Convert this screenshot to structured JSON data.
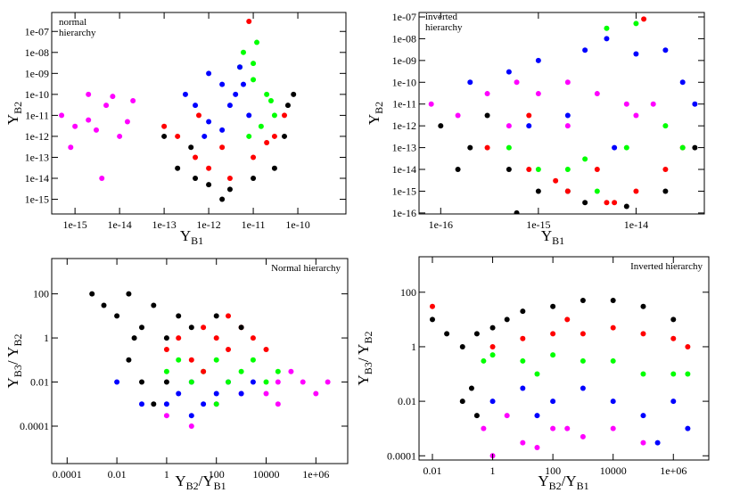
{
  "chart_data": [
    {
      "type": "scatter",
      "xscale": "log",
      "yscale": "log",
      "annotation": "normal hierarchy",
      "xlabel": [
        "Y",
        "B1"
      ],
      "ylabel": [
        "Y",
        "B2"
      ],
      "xlim": [
        3e-16,
        1.2e-09
      ],
      "ylim": [
        2e-16,
        8e-07
      ],
      "xticks": [
        {
          "value": 1e-15,
          "label": "1e-15"
        },
        {
          "value": 1e-14,
          "label": "1e-14"
        },
        {
          "value": 1e-13,
          "label": "1e-13"
        },
        {
          "value": 1e-12,
          "label": "1e-12"
        },
        {
          "value": 1e-11,
          "label": "1e-11"
        },
        {
          "value": 1e-10,
          "label": "1e-10"
        }
      ],
      "yticks": [
        {
          "value": 1e-15,
          "label": "1e-15"
        },
        {
          "value": 1e-14,
          "label": "1e-14"
        },
        {
          "value": 1e-13,
          "label": "1e-13"
        },
        {
          "value": 1e-12,
          "label": "1e-12"
        },
        {
          "value": 1e-11,
          "label": "1e-11"
        },
        {
          "value": 1e-10,
          "label": "1e-10"
        },
        {
          "value": 1e-09,
          "label": "1e-09"
        },
        {
          "value": 1e-08,
          "label": "1e-08"
        },
        {
          "value": 1e-07,
          "label": "1e-07"
        }
      ],
      "series": [
        {
          "color": "#ff00ff",
          "x": [
            5e-16,
            1e-15,
            2e-15,
            5e-15,
            1e-14,
            2e-14,
            8e-16,
            3e-15,
            7e-15,
            1.5e-14,
            4e-15,
            2e-15
          ],
          "values": [
            1e-11,
            3e-12,
            1e-10,
            3e-11,
            1e-12,
            5e-11,
            3e-13,
            2e-12,
            8e-11,
            5e-12,
            1e-14,
            6e-12
          ]
        },
        {
          "color": "#000000",
          "x": [
            1e-13,
            2e-13,
            5e-13,
            1e-12,
            3e-12,
            1e-11,
            3e-11,
            5e-11,
            8e-11,
            2e-12,
            4e-13,
            6e-11
          ],
          "values": [
            1e-12,
            3e-14,
            1e-14,
            5e-15,
            3e-15,
            1e-14,
            3e-14,
            1e-12,
            1e-10,
            1e-15,
            3e-13,
            3e-11
          ]
        },
        {
          "color": "#ff0000",
          "x": [
            2e-13,
            5e-13,
            1e-12,
            3e-12,
            1e-11,
            3e-11,
            5e-11,
            2e-12,
            6e-13,
            1e-13,
            2e-11,
            8e-12
          ],
          "values": [
            1e-12,
            1e-13,
            3e-14,
            1e-14,
            1e-13,
            1e-12,
            1e-11,
            3e-13,
            1e-11,
            3e-12,
            5e-13,
            3e-07
          ]
        },
        {
          "color": "#00ff00",
          "x": [
            6e-12,
            1e-11,
            2e-11,
            3e-11,
            8e-12,
            1.5e-11,
            1e-11,
            5e-12,
            2.5e-11,
            1.2e-11
          ],
          "values": [
            1e-08,
            3e-09,
            1e-10,
            1e-11,
            1e-12,
            3e-12,
            5e-10,
            2e-09,
            5e-11,
            3e-08
          ]
        },
        {
          "color": "#0000ff",
          "x": [
            5e-13,
            1e-12,
            2e-12,
            5e-12,
            8e-12,
            3e-13,
            1e-12,
            3e-12,
            6e-12,
            2e-12,
            8e-13,
            4e-12
          ],
          "values": [
            3e-11,
            1e-09,
            3e-10,
            2e-09,
            1e-11,
            1e-10,
            5e-12,
            3e-11,
            3e-10,
            2e-12,
            1e-12,
            1e-10
          ]
        }
      ]
    },
    {
      "type": "scatter",
      "xscale": "log",
      "yscale": "log",
      "annotation": "inverted hierarchy",
      "xlabel": [
        "Y",
        "B1"
      ],
      "ylabel": [
        "Y",
        "B2"
      ],
      "xlim": [
        6e-17,
        5e-14
      ],
      "ylim": [
        9e-17,
        1.6e-07
      ],
      "xticks": [
        {
          "value": 1e-16,
          "label": "1e-16"
        },
        {
          "value": 1e-15,
          "label": "1e-15"
        },
        {
          "value": 1e-14,
          "label": "1e-14"
        }
      ],
      "yticks": [
        {
          "value": 1e-16,
          "label": "1e-16"
        },
        {
          "value": 1e-15,
          "label": "1e-15"
        },
        {
          "value": 1e-14,
          "label": "1e-14"
        },
        {
          "value": 1e-13,
          "label": "1e-13"
        },
        {
          "value": 1e-12,
          "label": "1e-12"
        },
        {
          "value": 1e-11,
          "label": "1e-11"
        },
        {
          "value": 1e-10,
          "label": "1e-10"
        },
        {
          "value": 1e-09,
          "label": "1e-09"
        },
        {
          "value": 1e-08,
          "label": "1e-08"
        },
        {
          "value": 1e-07,
          "label": "1e-07"
        }
      ],
      "series": [
        {
          "color": "#000000",
          "x": [
            1e-16,
            2e-16,
            5e-16,
            1e-15,
            3e-15,
            8e-15,
            2e-14,
            1.5e-16,
            6e-16,
            2e-15,
            4e-14,
            3e-16
          ],
          "values": [
            1e-12,
            1e-13,
            1e-14,
            1e-15,
            3e-16,
            2e-16,
            1e-15,
            1e-14,
            1e-16,
            1e-15,
            1e-13,
            3e-12
          ]
        },
        {
          "color": "#ff0000",
          "x": [
            3e-16,
            8e-16,
            2e-15,
            5e-15,
            1e-14,
            2e-14,
            3e-14,
            1.5e-15,
            6e-15,
            8e-16,
            1.2e-14,
            4e-15
          ],
          "values": [
            1e-13,
            1e-14,
            1e-15,
            3e-16,
            1e-15,
            1e-14,
            1e-13,
            3e-15,
            3e-16,
            3e-12,
            8e-08,
            1e-14
          ]
        },
        {
          "color": "#00ff00",
          "x": [
            5e-16,
            1e-15,
            3e-15,
            8e-15,
            2e-14,
            3e-14,
            5e-15,
            1e-14,
            2e-15,
            4e-15
          ],
          "values": [
            1e-13,
            1e-14,
            3e-14,
            1e-13,
            1e-12,
            1e-13,
            3e-08,
            5e-08,
            1e-14,
            1e-15
          ]
        },
        {
          "color": "#0000ff",
          "x": [
            2e-16,
            5e-16,
            1e-15,
            3e-15,
            1e-14,
            3e-14,
            4e-14,
            5e-15,
            2e-15,
            8e-16,
            2e-14,
            6e-15
          ],
          "values": [
            1e-10,
            3e-10,
            1e-09,
            3e-09,
            2e-09,
            1e-10,
            1e-11,
            1e-08,
            3e-12,
            1e-12,
            3e-09,
            1e-13
          ]
        },
        {
          "color": "#ff00ff",
          "x": [
            8e-17,
            1.5e-16,
            3e-16,
            6e-16,
            1e-15,
            2e-15,
            4e-15,
            8e-15,
            1.5e-14,
            5e-16,
            2e-15,
            1e-14
          ],
          "values": [
            1e-11,
            3e-12,
            3e-11,
            1e-10,
            3e-11,
            1e-10,
            3e-11,
            1e-11,
            1e-11,
            1e-12,
            1e-12,
            3e-12
          ]
        }
      ]
    },
    {
      "type": "scatter",
      "xscale": "log",
      "yscale": "log",
      "annotation": "Normal hierarchy",
      "xlabel": [
        "Y",
        "B2",
        "/Y",
        "B1"
      ],
      "ylabel": [
        "Y",
        "B3",
        "/ Y",
        "B2"
      ],
      "xlim": [
        2.4e-05,
        19000000.0
      ],
      "ylim": [
        2e-06,
        4000
      ],
      "xticks": [
        0.0001,
        0.01,
        1,
        100,
        10000,
        {
          "value": 1000000,
          "label": "1e+06"
        }
      ],
      "yticks": [
        0.0001,
        0.01,
        1,
        100
      ],
      "series": [
        {
          "color": "#ff00ff",
          "x": [
            1,
            10,
            100,
            1000,
            10000,
            30000,
            100000,
            300000,
            1000000,
            3000000,
            30000
          ],
          "values": [
            0.0003,
            0.0001,
            0.001,
            0.003,
            0.003,
            0.01,
            0.03,
            0.01,
            0.003,
            0.01,
            0.001
          ]
        },
        {
          "color": "#0000ff",
          "x": [
            0.01,
            0.1,
            1,
            3,
            10,
            30,
            100,
            300,
            1000,
            3000,
            10
          ],
          "values": [
            0.01,
            0.001,
            0.001,
            0.003,
            0.01,
            0.001,
            0.003,
            0.01,
            0.003,
            0.01,
            0.0003
          ]
        },
        {
          "color": "#00ff00",
          "x": [
            1,
            3,
            10,
            30,
            100,
            300,
            1000,
            3000,
            10000,
            30000,
            100
          ],
          "values": [
            0.03,
            0.1,
            0.01,
            0.03,
            0.1,
            0.01,
            0.03,
            0.1,
            0.01,
            0.03,
            0.001
          ]
        },
        {
          "color": "#ff0000",
          "x": [
            1,
            3,
            10,
            30,
            100,
            300,
            1000,
            3000,
            10000,
            30,
            300
          ],
          "values": [
            0.3,
            1,
            0.1,
            3,
            1,
            0.3,
            3,
            1,
            0.3,
            0.03,
            10
          ]
        },
        {
          "color": "#000000",
          "x": [
            0.001,
            0.003,
            0.01,
            0.03,
            0.1,
            0.3,
            1,
            3,
            10,
            100,
            1000,
            0.03,
            0.1,
            0.3,
            0.05,
            1
          ],
          "values": [
            100,
            30,
            10,
            100,
            3,
            30,
            1,
            10,
            3,
            10,
            3,
            0.1,
            0.01,
            0.001,
            1,
            0.01
          ]
        }
      ]
    },
    {
      "type": "scatter",
      "xscale": "log",
      "yscale": "log",
      "annotation": "Inverted hierarchy",
      "xlabel": [
        "Y",
        "B2",
        "/Y",
        "B1"
      ],
      "ylabel": [
        "Y",
        "B3",
        "/ Y",
        "B2"
      ],
      "xlim": [
        0.0036,
        15000000.0
      ],
      "ylim": [
        7e-05,
        2000
      ],
      "xticks": [
        0.01,
        1,
        100,
        10000,
        {
          "value": 1000000,
          "label": "1e+06"
        }
      ],
      "yticks": [
        0.0001,
        0.01,
        1,
        100
      ],
      "series": [
        {
          "color": "#ff00ff",
          "x": [
            0.5,
            3,
            10,
            100,
            1000,
            10000,
            100000,
            1,
            30,
            300
          ],
          "values": [
            0.001,
            0.003,
            0.0003,
            0.001,
            0.0005,
            0.001,
            0.0003,
            0.0001,
            0.0002,
            0.001
          ]
        },
        {
          "color": "#0000ff",
          "x": [
            1,
            10,
            100,
            1000,
            10000,
            100000,
            1000000,
            3000000,
            30,
            300000
          ],
          "values": [
            0.01,
            0.03,
            0.01,
            0.03,
            0.01,
            0.003,
            0.01,
            0.001,
            0.003,
            0.0003
          ]
        },
        {
          "color": "#00ff00",
          "x": [
            0.5,
            1,
            10,
            100,
            1000,
            10000,
            100000,
            1000000,
            3000000,
            30
          ],
          "values": [
            0.3,
            0.5,
            0.3,
            0.5,
            0.3,
            0.3,
            0.1,
            0.1,
            0.1,
            0.1
          ]
        },
        {
          "color": "#ff0000",
          "x": [
            0.01,
            1,
            10,
            100,
            1000,
            10000,
            100000,
            1000000,
            3000000,
            300
          ],
          "values": [
            30,
            1,
            2,
            3,
            3,
            5,
            3,
            2,
            1,
            10
          ]
        },
        {
          "color": "#000000",
          "x": [
            0.01,
            0.03,
            0.1,
            0.3,
            1,
            3,
            10,
            100,
            1000,
            10000,
            100000,
            1000000,
            0.1,
            0.2,
            0.3
          ],
          "values": [
            10,
            3,
            1,
            3,
            5,
            10,
            20,
            30,
            50,
            50,
            30,
            10,
            0.01,
            0.03,
            0.003
          ]
        }
      ]
    }
  ]
}
